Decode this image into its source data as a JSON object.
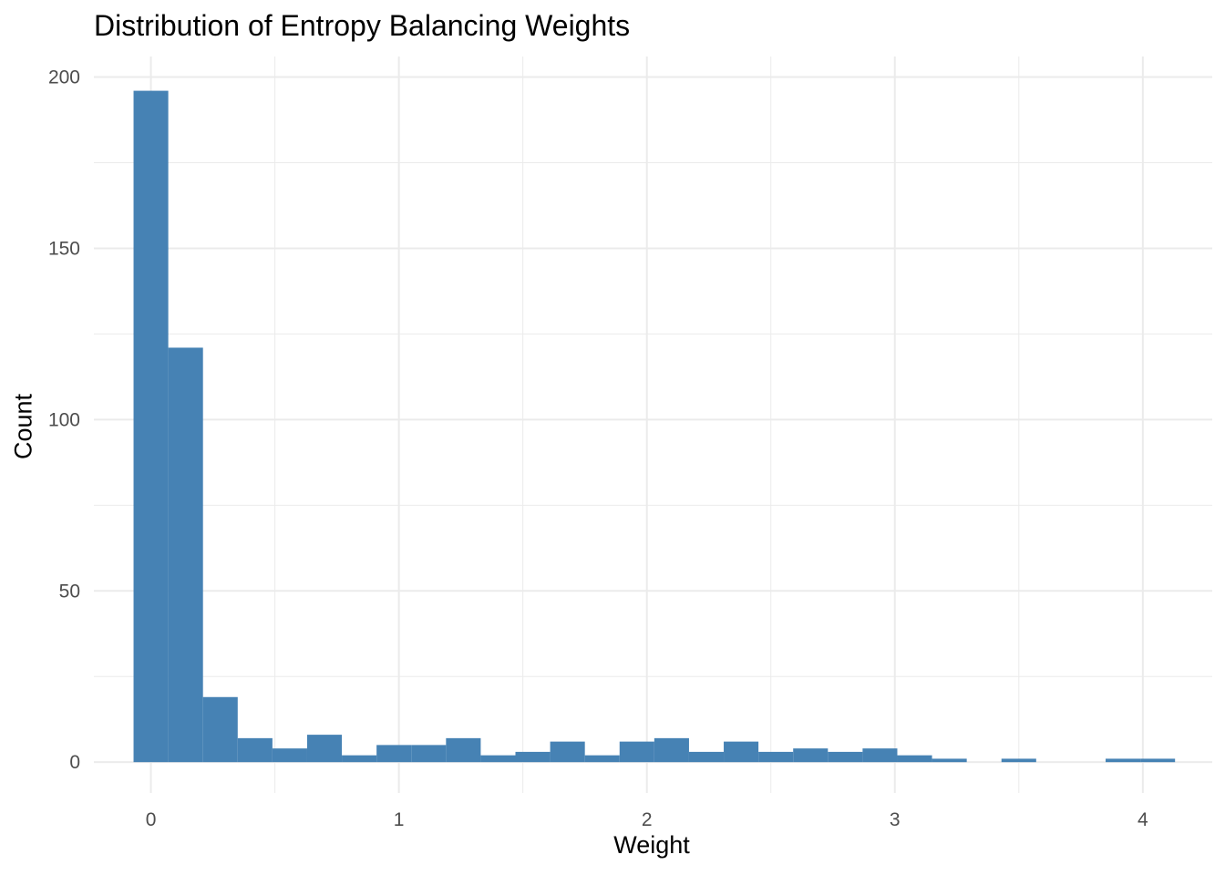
{
  "chart_data": {
    "type": "bar",
    "title": "Distribution of Entropy Balancing Weights",
    "xlabel": "Weight",
    "ylabel": "Count",
    "xlim": [
      -0.23,
      4.28
    ],
    "ylim": [
      -9,
      206
    ],
    "x_ticks": [
      0,
      1,
      2,
      3,
      4
    ],
    "x_tick_labels": [
      "0",
      "1",
      "2",
      "3",
      "4"
    ],
    "y_ticks": [
      0,
      50,
      100,
      150,
      200
    ],
    "y_tick_labels": [
      "0",
      "50",
      "100",
      "150",
      "200"
    ],
    "grid": true,
    "bin_width": 0.14,
    "bin_start": -0.07,
    "bin_centers": [
      0,
      0.14,
      0.28,
      0.42,
      0.56,
      0.7,
      0.84,
      0.98,
      1.12,
      1.26,
      1.4,
      1.54,
      1.68,
      1.82,
      1.96,
      2.1,
      2.24,
      2.38,
      2.52,
      2.66,
      2.8,
      2.94,
      3.08,
      3.22,
      3.36,
      3.5,
      3.64,
      3.78,
      3.92,
      4.06
    ],
    "values": [
      196,
      121,
      19,
      7,
      4,
      8,
      2,
      5,
      5,
      7,
      2,
      3,
      6,
      2,
      6,
      7,
      3,
      6,
      3,
      4,
      3,
      4,
      2,
      1,
      0,
      1,
      0,
      0,
      1,
      1
    ],
    "bar_color": "#4682B4",
    "grid_color": "#EBEBEB",
    "tick_label_color": "#4D4D4D"
  }
}
